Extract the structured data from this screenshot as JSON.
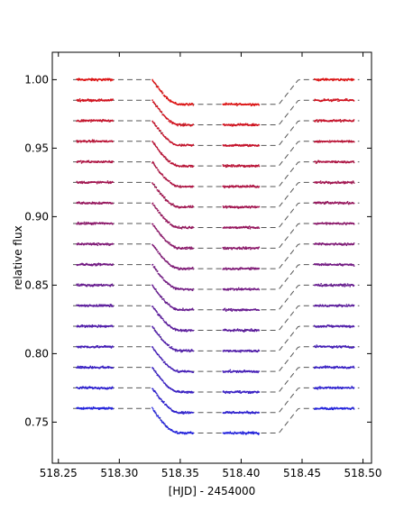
{
  "chart_data": {
    "type": "scatter",
    "title": "",
    "xlabel": "[HJD] - 2454000",
    "ylabel": "relative flux",
    "xlim": [
      518.245,
      518.507
    ],
    "ylim": [
      0.72,
      1.02
    ],
    "xticks": [
      518.25,
      518.3,
      518.35,
      518.4,
      518.45,
      518.5
    ],
    "xtick_labels": [
      "518.25",
      "518.30",
      "518.35",
      "518.40",
      "518.45",
      "518.50"
    ],
    "yticks": [
      0.75,
      0.8,
      0.85,
      0.9,
      0.95,
      1.0
    ],
    "ytick_labels": [
      "0.75",
      "0.80",
      "0.85",
      "0.90",
      "0.95",
      "1.00"
    ],
    "grid": false,
    "legend": "none",
    "series_count": 17,
    "baseline_start": 1.0,
    "baseline_step": -0.015,
    "transit_depth": 0.018,
    "transit_ingress_start": 518.327,
    "transit_ingress_end": 518.35,
    "transit_egress_start": 518.431,
    "transit_egress_end": 518.447,
    "observed_segments": [
      [
        518.265,
        518.295
      ],
      [
        518.327,
        518.361
      ],
      [
        518.385,
        518.415
      ],
      [
        518.46,
        518.493
      ]
    ],
    "colors": {
      "first": "#dd1111",
      "last": "#2222dd",
      "model_line": "#555555"
    },
    "model_style": "dashed"
  }
}
